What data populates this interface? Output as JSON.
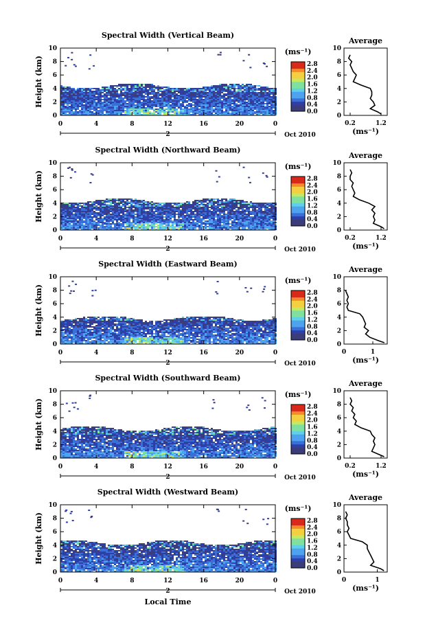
{
  "colorbar_ticks": [
    "2.8",
    "2.4",
    "2.0",
    "1.6",
    "1.2",
    "0.8",
    "0.4",
    "0.0"
  ],
  "colorbar_unit": "(ms⁻¹)",
  "profile_unit": "(ms⁻¹)",
  "x_ticks": [
    "0",
    "4",
    "8",
    "12",
    "16",
    "20",
    "0"
  ],
  "date_label": "Oct 2010",
  "day_label": "2",
  "xlabel": "Local Time",
  "ylabel": "Height (km)",
  "y_ticks": [
    "0",
    "2",
    "4",
    "6",
    "8",
    "10"
  ],
  "avg_title": "Average",
  "chart_data": [
    {
      "type": "heatmap",
      "title": "Spectral Width (Vertical Beam)",
      "xlabel": "Local Time",
      "ylabel": "Height (km)",
      "xlim": [
        0,
        24
      ],
      "ylim": [
        0,
        10
      ],
      "clim": [
        0.0,
        3.0
      ],
      "echo_top_km": 4.5,
      "profile": {
        "title": "Average",
        "xlim": [
          0.0,
          1.4
        ],
        "xticks": [
          "0.2",
          "1.2"
        ],
        "height_km": [
          0.2,
          0.5,
          1,
          1.5,
          2,
          2.5,
          3,
          3.5,
          4,
          4.5,
          5,
          5.5,
          6,
          6.5,
          7,
          7.5,
          8,
          8.5,
          9
        ],
        "width": [
          1.2,
          1.1,
          0.85,
          1.0,
          0.95,
          0.85,
          0.9,
          0.9,
          0.85,
          0.55,
          0.3,
          0.35,
          0.4,
          0.3,
          0.25,
          0.2,
          0.25,
          0.15,
          0.2
        ]
      }
    },
    {
      "type": "heatmap",
      "title": "Spectral Width (Northward Beam)",
      "xlabel": "Local Time",
      "ylabel": "Height (km)",
      "xlim": [
        0,
        24
      ],
      "ylim": [
        0,
        10
      ],
      "clim": [
        0.0,
        3.0
      ],
      "echo_top_km": 4.5,
      "profile": {
        "title": "Average",
        "xlim": [
          0.0,
          1.4
        ],
        "xticks": [
          "0.2",
          "1.2"
        ],
        "height_km": [
          0.2,
          0.5,
          1,
          1.5,
          2,
          2.5,
          3,
          3.5,
          4,
          4.5,
          5,
          5.5,
          6,
          6.5,
          7,
          7.5,
          8,
          8.5,
          9
        ],
        "width": [
          1.3,
          1.2,
          0.95,
          1.0,
          0.95,
          1.0,
          0.9,
          1.0,
          0.8,
          0.5,
          0.3,
          0.35,
          0.3,
          0.25,
          0.3,
          0.2,
          0.2,
          0.25,
          0.2
        ]
      }
    },
    {
      "type": "heatmap",
      "title": "Spectral Width (Eastward Beam)",
      "xlabel": "Local Time",
      "ylabel": "Height (km)",
      "xlim": [
        0,
        24
      ],
      "ylim": [
        0,
        10
      ],
      "clim": [
        0.0,
        3.0
      ],
      "echo_top_km": 4.0,
      "profile": {
        "title": "Average",
        "xlim": [
          0.0,
          1.5
        ],
        "xticks": [
          "0",
          "1"
        ],
        "height_km": [
          0.2,
          0.5,
          1,
          1.5,
          2,
          2.5,
          3,
          3.5,
          4,
          4.5,
          5,
          5.5,
          6,
          6.5,
          7,
          7.5,
          8
        ],
        "width": [
          1.4,
          1.2,
          0.9,
          0.75,
          0.85,
          0.7,
          0.75,
          0.7,
          0.65,
          0.55,
          0.15,
          0.1,
          0.15,
          0.1,
          0.15,
          0.1,
          0.05
        ]
      }
    },
    {
      "type": "heatmap",
      "title": "Spectral Width (Southward Beam)",
      "xlabel": "Local Time",
      "ylabel": "Height (km)",
      "xlim": [
        0,
        24
      ],
      "ylim": [
        0,
        10
      ],
      "clim": [
        0.0,
        3.0
      ],
      "echo_top_km": 4.5,
      "profile": {
        "title": "Average",
        "xlim": [
          0.0,
          1.4
        ],
        "xticks": [
          "0.2",
          "1.2"
        ],
        "height_km": [
          0.2,
          0.5,
          1,
          1.5,
          2,
          2.5,
          3,
          3.5,
          4,
          4.5,
          5,
          5.5,
          6,
          6.5,
          7,
          7.5,
          8,
          8.5,
          9
        ],
        "width": [
          1.3,
          1.15,
          0.9,
          0.95,
          1.0,
          0.95,
          1.0,
          0.9,
          0.85,
          0.55,
          0.35,
          0.4,
          0.3,
          0.35,
          0.25,
          0.3,
          0.2,
          0.25,
          0.2
        ]
      }
    },
    {
      "type": "heatmap",
      "title": "Spectral Width (Westward Beam)",
      "xlabel": "Local Time",
      "ylabel": "Height (km)",
      "xlim": [
        0,
        24
      ],
      "ylim": [
        0,
        10
      ],
      "clim": [
        0.0,
        3.0
      ],
      "echo_top_km": 4.5,
      "profile": {
        "title": "Average",
        "xlim": [
          0.0,
          1.3
        ],
        "xticks": [
          "0",
          "1"
        ],
        "height_km": [
          0.2,
          0.5,
          1,
          1.5,
          2,
          2.5,
          3,
          3.5,
          4,
          4.5,
          5,
          5.5,
          6,
          6.5,
          7,
          7.5,
          8,
          8.5,
          9
        ],
        "width": [
          1.2,
          1.1,
          0.8,
          0.9,
          0.85,
          0.8,
          0.75,
          0.7,
          0.7,
          0.55,
          0.2,
          0.15,
          0.1,
          0.15,
          0.1,
          0.1,
          0.05,
          0.1,
          0.05
        ]
      }
    }
  ]
}
